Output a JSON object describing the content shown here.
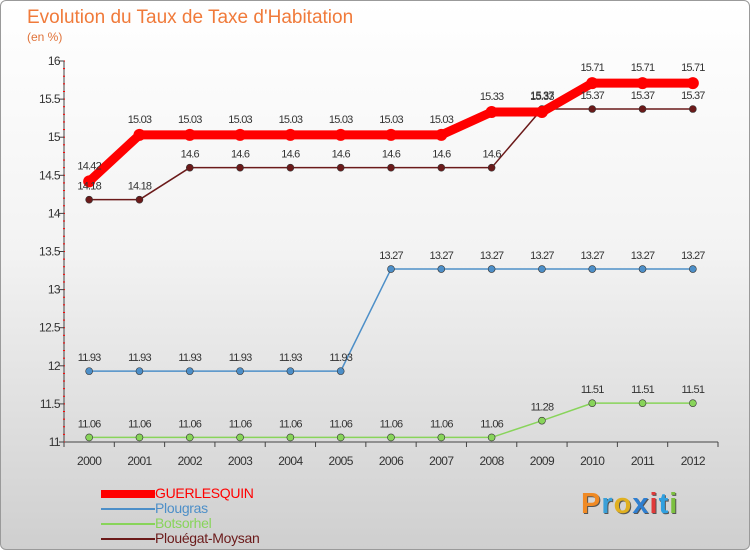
{
  "title": "Evolution du Taux de Taxe d'Habitation",
  "unit": "(en %)",
  "logo": {
    "text": "Proxiti",
    "letter_colors": [
      "#f08a24",
      "#3aa0d8",
      "#e0b020",
      "#2f7fd0",
      "#e03a3a",
      "#2fa0e0",
      "#7cc040"
    ]
  },
  "chart_data": {
    "type": "line",
    "x": [
      "2000",
      "2001",
      "2002",
      "2003",
      "2004",
      "2005",
      "2006",
      "2007",
      "2008",
      "2009",
      "2010",
      "2011",
      "2012"
    ],
    "ylim": [
      11,
      16
    ],
    "yticks": [
      "11",
      "11.5",
      "12",
      "12.5",
      "13",
      "13.5",
      "14",
      "14.5",
      "15",
      "15.5",
      "16"
    ],
    "grid": false,
    "legend_position": "bottom-left",
    "series": [
      {
        "name": "GUERLESQUIN",
        "color": "#ff0000",
        "values": [
          14.42,
          15.03,
          15.03,
          15.03,
          15.03,
          15.03,
          15.03,
          15.03,
          15.33,
          15.33,
          15.71,
          15.71,
          15.71
        ],
        "labels": [
          "14.42",
          "15.03",
          "15.03",
          "15.03",
          "15.03",
          "15.03",
          "15.03",
          "15.03",
          "15.33",
          "15.33",
          "15.71",
          "15.71",
          "15.71"
        ]
      },
      {
        "name": "Plougras",
        "color": "#4d8fc8",
        "values": [
          11.93,
          11.93,
          11.93,
          11.93,
          11.93,
          11.93,
          13.27,
          13.27,
          13.27,
          13.27,
          13.27,
          13.27,
          13.27
        ],
        "labels": [
          "11.93",
          "11.93",
          "11.93",
          "11.93",
          "11.93",
          "11.93",
          "13.27",
          "13.27",
          "13.27",
          "13.27",
          "13.27",
          "13.27",
          "13.27"
        ]
      },
      {
        "name": "Botsorhel",
        "color": "#88d45a",
        "values": [
          11.06,
          11.06,
          11.06,
          11.06,
          11.06,
          11.06,
          11.06,
          11.06,
          11.06,
          11.28,
          11.51,
          11.51,
          11.51
        ],
        "labels": [
          "11.06",
          "11.06",
          "11.06",
          "11.06",
          "11.06",
          "11.06",
          "11.06",
          "11.06",
          "11.06",
          "11.28",
          "11.51",
          "11.51",
          "11.51"
        ]
      },
      {
        "name": "Plouégat-Moysan",
        "color": "#6b1a1a",
        "values": [
          14.18,
          14.18,
          14.6,
          14.6,
          14.6,
          14.6,
          14.6,
          14.6,
          14.6,
          15.37,
          15.37,
          15.37,
          15.37
        ],
        "labels": [
          "14.18",
          "14.18",
          "14.6",
          "14.6",
          "14.6",
          "14.6",
          "14.6",
          "14.6",
          "14.6",
          "15.37",
          "15.37",
          "15.37",
          "15.37"
        ]
      }
    ]
  }
}
